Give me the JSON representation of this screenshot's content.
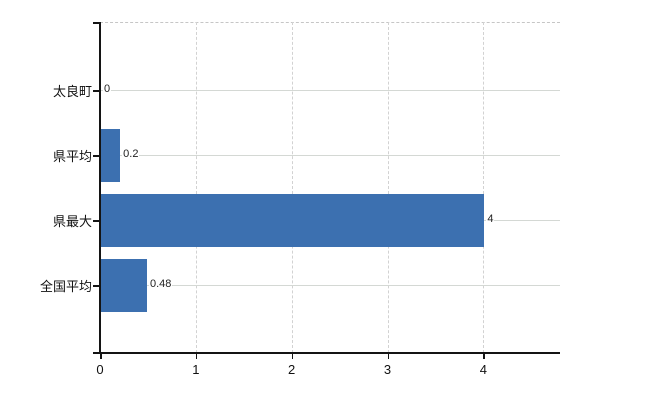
{
  "chart_data": {
    "type": "bar",
    "orientation": "horizontal",
    "title": "",
    "categories": [
      "太良町",
      "県平均",
      "県最大",
      "全国平均"
    ],
    "values": [
      0,
      0.2,
      4,
      0.48
    ],
    "value_labels": [
      "0",
      "0.2",
      "4",
      "0.48"
    ],
    "x_ticks": [
      "0",
      "1",
      "2",
      "3",
      "4"
    ],
    "x_tick_values": [
      0,
      1,
      2,
      3,
      4
    ],
    "xlim": [
      0,
      4.8
    ],
    "xlabel": "",
    "ylabel": "",
    "grid": true,
    "legend": false,
    "bar_color": "#3C70B0",
    "grid_color": "#d4d8d4",
    "axis_color": "#141414",
    "label_color": "#111111",
    "value_label_color": "#222222",
    "background": "#ffffff"
  }
}
